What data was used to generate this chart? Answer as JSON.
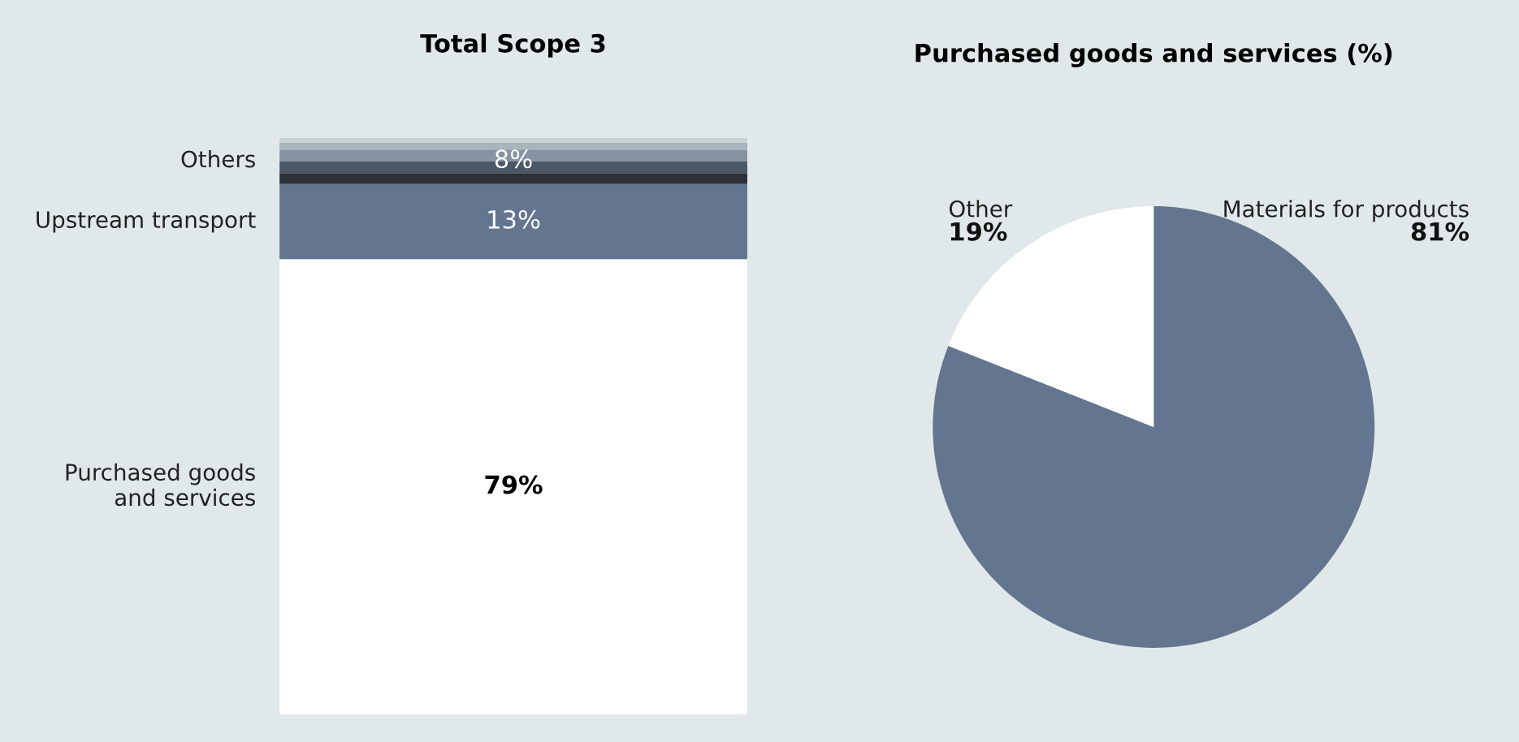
{
  "chart_data": [
    {
      "type": "bar",
      "stacked": true,
      "title": "Total Scope 3",
      "categories": [
        null
      ],
      "series": [
        {
          "name": "Purchased goods\nand services",
          "color": "#ffffff",
          "values": [
            79
          ],
          "value_labels": [
            "79%"
          ]
        },
        {
          "name": "Upstream transport",
          "color": "#647590",
          "values": [
            13
          ],
          "value_labels": [
            "13%"
          ]
        },
        {
          "color": "#2d323a",
          "values": [
            1.9
          ]
        },
        {
          "color": "#4c5866",
          "values": [
            2.0
          ]
        },
        {
          "color": "#8593a3",
          "values": [
            2.1
          ]
        },
        {
          "color": "#a8b5bd",
          "values": [
            1.2
          ]
        },
        {
          "color": "#c9d3d6",
          "values": [
            0.8
          ]
        }
      ],
      "ylim": [
        0,
        100
      ],
      "annotations": [
        "Others",
        "8%"
      ]
    },
    {
      "type": "pie",
      "title": "Purchased goods and services (%)",
      "categories": [
        "Materials for products",
        "Other"
      ],
      "values": [
        81,
        19
      ],
      "colors": [
        "#647590",
        "#ffffff"
      ],
      "value_labels": [
        "81%",
        "19%"
      ]
    }
  ]
}
